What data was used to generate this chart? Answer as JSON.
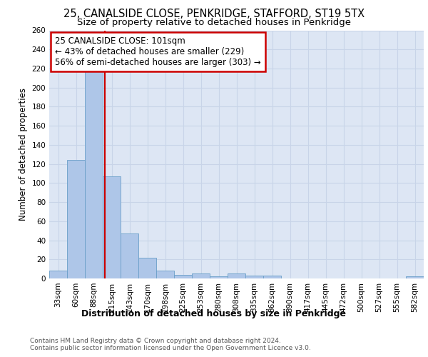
{
  "title1": "25, CANALSIDE CLOSE, PENKRIDGE, STAFFORD, ST19 5TX",
  "title2": "Size of property relative to detached houses in Penkridge",
  "xlabel": "Distribution of detached houses by size in Penkridge",
  "ylabel": "Number of detached properties",
  "categories": [
    "33sqm",
    "60sqm",
    "88sqm",
    "115sqm",
    "143sqm",
    "170sqm",
    "198sqm",
    "225sqm",
    "253sqm",
    "280sqm",
    "308sqm",
    "335sqm",
    "362sqm",
    "390sqm",
    "417sqm",
    "445sqm",
    "472sqm",
    "500sqm",
    "527sqm",
    "555sqm",
    "582sqm"
  ],
  "values": [
    8,
    124,
    218,
    107,
    47,
    22,
    8,
    4,
    5,
    2,
    5,
    3,
    3,
    0,
    0,
    0,
    0,
    0,
    0,
    0,
    2
  ],
  "bar_color": "#aec6e8",
  "bar_edge_color": "#6a9fc8",
  "red_line_x": 2.62,
  "annotation_title": "25 CANALSIDE CLOSE: 101sqm",
  "annotation_line1": "← 43% of detached houses are smaller (229)",
  "annotation_line2": "56% of semi-detached houses are larger (303) →",
  "annotation_box_color": "#ffffff",
  "annotation_box_edge_color": "#cc0000",
  "red_line_color": "#cc0000",
  "ylim": [
    0,
    260
  ],
  "yticks": [
    0,
    20,
    40,
    60,
    80,
    100,
    120,
    140,
    160,
    180,
    200,
    220,
    240,
    260
  ],
  "grid_color": "#c8d4e8",
  "background_color": "#dde6f4",
  "footer": "Contains HM Land Registry data © Crown copyright and database right 2024.\nContains public sector information licensed under the Open Government Licence v3.0.",
  "title1_fontsize": 10.5,
  "title2_fontsize": 9.5,
  "xlabel_fontsize": 9,
  "ylabel_fontsize": 8.5,
  "tick_fontsize": 7.5,
  "annotation_fontsize": 8.5,
  "footer_fontsize": 6.5
}
